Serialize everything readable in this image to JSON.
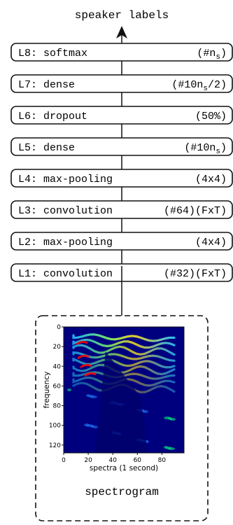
{
  "output": {
    "label": "speaker labels"
  },
  "layers": [
    {
      "name": "L8: softmax",
      "param_main": "(#n",
      "param_sub": "s",
      "param_end": ")"
    },
    {
      "name": "L7: dense",
      "param_main": "(#10n",
      "param_sub": "s",
      "param_end": "/2)"
    },
    {
      "name": "L6: dropout",
      "param_main": "(50%)",
      "param_sub": "",
      "param_end": ""
    },
    {
      "name": "L5: dense",
      "param_main": "(#10n",
      "param_sub": "s",
      "param_end": ")"
    },
    {
      "name": "L4: max-pooling",
      "param_main": "(4x4)",
      "param_sub": "",
      "param_end": ""
    },
    {
      "name": "L3: convolution",
      "param_main": "(#64)(FxT)",
      "param_sub": "",
      "param_end": ""
    },
    {
      "name": "L2: max-pooling",
      "param_main": "(4x4)",
      "param_sub": "",
      "param_end": ""
    },
    {
      "name": "L1: convolution",
      "param_main": "(#32)(FxT)",
      "param_sub": "",
      "param_end": ""
    }
  ],
  "input": {
    "caption": "spectrogram",
    "xlabel": "spectra (1 second)",
    "ylabel": "frequency",
    "x_ticks": [
      "0",
      "20",
      "40",
      "60",
      "80"
    ],
    "y_ticks": [
      "0",
      "20",
      "40",
      "60",
      "80",
      "100",
      "120"
    ],
    "colors": {
      "low": "#00007f",
      "mid": "#00ff80",
      "high": "#ff0000"
    }
  }
}
